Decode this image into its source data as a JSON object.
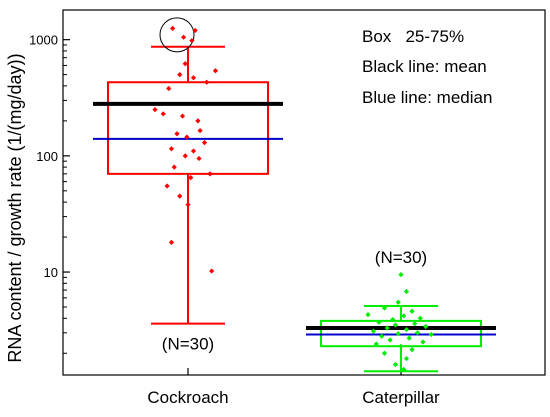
{
  "chart_data": {
    "type": "box",
    "ylabel": "RNA content / growth rate (1/(mg/day))",
    "yscale": "log",
    "ylim": [
      1.3,
      1800
    ],
    "yticks": [
      {
        "value": 10,
        "label": "10"
      },
      {
        "value": 100,
        "label": "100"
      },
      {
        "value": 1000,
        "label": "1000"
      }
    ],
    "categories": [
      "Cockroach",
      "Caterpillar"
    ],
    "legend_notes": [
      "Box   25-75%",
      "Black line: mean",
      "Blue line: median"
    ],
    "series": [
      {
        "category": "Cockroach",
        "color": "#ff0000",
        "q1": 70,
        "q3": 430,
        "mean": 280,
        "median": 140,
        "whisker_low": 3.6,
        "whisker_high": 870,
        "n_label": "(N=30)",
        "highlight_circle": true,
        "points": [
          {
            "dx": -0.28,
            "y": 1250
          },
          {
            "dx": 0.13,
            "y": 1200
          },
          {
            "dx": -0.08,
            "y": 1050
          },
          {
            "dx": 0.07,
            "y": 980
          },
          {
            "dx": -0.05,
            "y": 620
          },
          {
            "dx": 0.5,
            "y": 540
          },
          {
            "dx": -0.15,
            "y": 500
          },
          {
            "dx": 0.1,
            "y": 470
          },
          {
            "dx": 0.34,
            "y": 430
          },
          {
            "dx": -0.35,
            "y": 380
          },
          {
            "dx": -0.6,
            "y": 250
          },
          {
            "dx": -0.45,
            "y": 230
          },
          {
            "dx": -0.1,
            "y": 220
          },
          {
            "dx": 0.18,
            "y": 200
          },
          {
            "dx": 0.22,
            "y": 165
          },
          {
            "dx": -0.2,
            "y": 155
          },
          {
            "dx": -0.02,
            "y": 145
          },
          {
            "dx": 0.3,
            "y": 130
          },
          {
            "dx": -0.3,
            "y": 115
          },
          {
            "dx": 0.1,
            "y": 110
          },
          {
            "dx": -0.05,
            "y": 100
          },
          {
            "dx": 0.2,
            "y": 95
          },
          {
            "dx": -0.25,
            "y": 80
          },
          {
            "dx": 0.4,
            "y": 70
          },
          {
            "dx": 0.05,
            "y": 65
          },
          {
            "dx": -0.38,
            "y": 55
          },
          {
            "dx": -0.15,
            "y": 45
          },
          {
            "dx": 0.0,
            "y": 38
          },
          {
            "dx": -0.3,
            "y": 18
          },
          {
            "dx": 0.43,
            "y": 10.2
          }
        ]
      },
      {
        "category": "Caterpillar",
        "color": "#00ee00",
        "q1": 2.3,
        "q3": 3.8,
        "mean": 3.3,
        "median": 2.9,
        "whisker_low": 1.4,
        "whisker_high": 5.1,
        "n_label": "(N=30)",
        "highlight_circle": false,
        "points": [
          {
            "dx": 0.0,
            "y": 9.5
          },
          {
            "dx": 0.1,
            "y": 6.8
          },
          {
            "dx": -0.05,
            "y": 5.5
          },
          {
            "dx": -0.3,
            "y": 4.9
          },
          {
            "dx": 0.2,
            "y": 4.6
          },
          {
            "dx": -0.6,
            "y": 4.3
          },
          {
            "dx": 0.05,
            "y": 4.2
          },
          {
            "dx": 0.35,
            "y": 4.0
          },
          {
            "dx": -0.15,
            "y": 3.9
          },
          {
            "dx": -0.4,
            "y": 3.7
          },
          {
            "dx": 0.25,
            "y": 3.6
          },
          {
            "dx": -0.1,
            "y": 3.5
          },
          {
            "dx": 0.45,
            "y": 3.4
          },
          {
            "dx": -0.25,
            "y": 3.3
          },
          {
            "dx": 0.1,
            "y": 3.2
          },
          {
            "dx": -0.5,
            "y": 3.1
          },
          {
            "dx": 0.3,
            "y": 3.0
          },
          {
            "dx": -0.05,
            "y": 2.95
          },
          {
            "dx": 0.55,
            "y": 2.9
          },
          {
            "dx": -0.35,
            "y": 2.8
          },
          {
            "dx": 0.15,
            "y": 2.7
          },
          {
            "dx": -0.2,
            "y": 2.6
          },
          {
            "dx": 0.4,
            "y": 2.5
          },
          {
            "dx": -0.45,
            "y": 2.4
          },
          {
            "dx": 0.0,
            "y": 2.3
          },
          {
            "dx": 0.2,
            "y": 2.15
          },
          {
            "dx": -0.3,
            "y": 2.0
          },
          {
            "dx": 0.1,
            "y": 1.8
          },
          {
            "dx": -0.1,
            "y": 1.6
          },
          {
            "dx": 0.05,
            "y": 1.45
          }
        ]
      }
    ]
  }
}
